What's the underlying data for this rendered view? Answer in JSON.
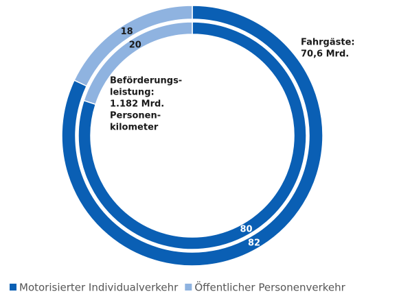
{
  "chart_data": {
    "type": "donut",
    "categories": [
      "Motorisierter Individualverkehr",
      "Öffentlicher Personenverkehr"
    ],
    "colors": [
      "#0a5fb4",
      "#8fb3e0"
    ],
    "rings": [
      {
        "label": [
          "Fahrgäste:",
          "70,6 Mrd."
        ],
        "values": [
          82,
          18
        ]
      },
      {
        "label": [
          "Beförderungs-",
          "leistung:",
          "1.182 Mrd.",
          "Personen-",
          "kilometer"
        ],
        "values": [
          80,
          20
        ]
      }
    ],
    "legend": "bottom"
  }
}
